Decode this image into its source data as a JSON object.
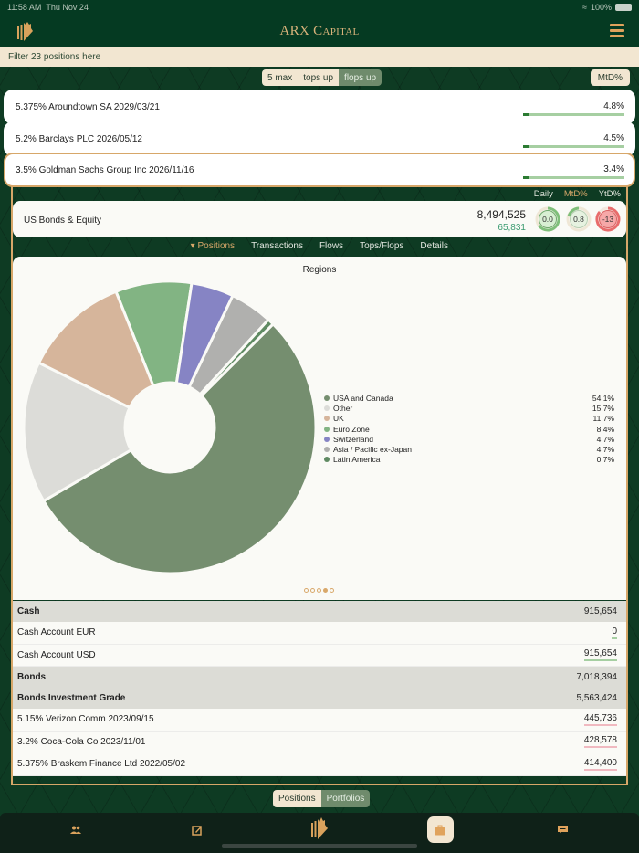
{
  "status_bar": {
    "time": "11:58 AM",
    "date": "Thu Nov 24",
    "wifi": "wifi-icon",
    "battery": "100%"
  },
  "header": {
    "title_big1": "ARX C",
    "title_small1": "APITAL",
    "logo": "arx-logo-icon",
    "menu": "hamburger-menu-icon"
  },
  "filter": {
    "placeholder": "Filter 23 positions here"
  },
  "top_segment": {
    "options": [
      "5 max",
      "tops up",
      "flops up"
    ],
    "selected": "flops up"
  },
  "metric_button": "MtD%",
  "tops_flops": [
    {
      "name": "5.375% Aroundtown SA 2029/03/21",
      "value": "4.8%"
    },
    {
      "name": "5.2% Barclays PLC 2026/05/12",
      "value": "4.5%"
    },
    {
      "name": "3.5% Goldman Sachs Group Inc 2026/11/16",
      "value": "3.4%",
      "selected": true
    }
  ],
  "period_tabs": {
    "daily": "Daily",
    "mtd": "MtD%",
    "ytd": "YtD%",
    "selected": "MtD%"
  },
  "portfolio": {
    "name": "US Bonds & Equity",
    "total": "8,494,525",
    "delta": "65,831",
    "gauges": [
      {
        "label": "0.0",
        "color": "#7fbf7a",
        "bg": "#d8efd3"
      },
      {
        "label": "0.8",
        "color": "#7fbf7a",
        "bg": "#e6f2e0"
      },
      {
        "label": "-13",
        "color": "#e86c6c",
        "bg": "#f6a8a8"
      }
    ]
  },
  "nav_tabs": [
    "Positions",
    "Transactions",
    "Flows",
    "Tops/Flops",
    "Details"
  ],
  "nav_selected": "Positions",
  "chart_data": {
    "type": "pie",
    "title": "Regions",
    "categories": [
      "USA and Canada",
      "Other",
      "UK",
      "Euro Zone",
      "Switzerland",
      "Asia / Pacific ex-Japan",
      "Latin America"
    ],
    "values": [
      54.1,
      15.7,
      11.7,
      8.4,
      4.7,
      4.7,
      0.7
    ],
    "labels": [
      "54.1%",
      "15.7%",
      "11.7%",
      "8.4%",
      "4.7%",
      "4.7%",
      "0.7%"
    ],
    "colors": [
      "#758e6f",
      "#dcdcd8",
      "#d6b59b",
      "#82b483",
      "#8684c4",
      "#b0b0ae",
      "#5f8a62"
    ],
    "donut": true,
    "legend_position": "right"
  },
  "pager": {
    "count": 5,
    "active": 3
  },
  "table": {
    "rows": [
      {
        "type": "hdr",
        "label": "Cash",
        "value": "915,654"
      },
      {
        "type": "item",
        "label": "Cash Account EUR",
        "value": "0",
        "underline": "green"
      },
      {
        "type": "item",
        "label": "Cash Account USD",
        "value": "915,654",
        "underline": "green"
      },
      {
        "type": "hdr",
        "label": "Bonds",
        "value": "7,018,394"
      },
      {
        "type": "hdr",
        "label": "Bonds Investment Grade",
        "value": "5,563,424"
      },
      {
        "type": "item",
        "label": "5.15% Verizon Comm 2023/09/15",
        "value": "445,736",
        "underline": "red"
      },
      {
        "type": "item",
        "label": "3.2% Coca-Cola Co 2023/11/01",
        "value": "428,578",
        "underline": "red"
      },
      {
        "type": "item",
        "label": "5.375% Braskem Finance Ltd 2022/05/02",
        "value": "414,400",
        "underline": "red"
      }
    ]
  },
  "bottom_segment": {
    "options": [
      "Positions",
      "Portfolios"
    ],
    "selected": "Positions"
  },
  "tab_bar": {
    "items": [
      "clients-icon",
      "edit-icon",
      "arx-logo-icon",
      "portfolio-briefcase-icon",
      "messages-icon"
    ],
    "selected": "portfolio-briefcase-icon"
  }
}
